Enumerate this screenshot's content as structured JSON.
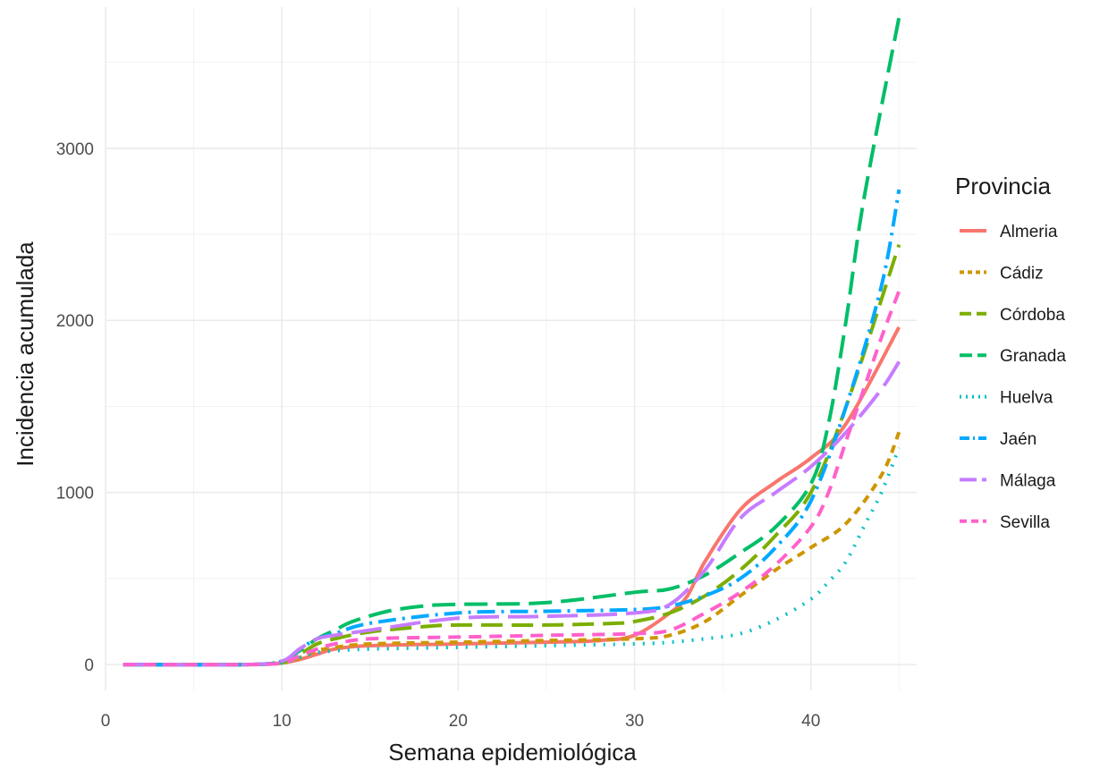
{
  "chart_data": {
    "type": "line",
    "title": "",
    "xlabel": "Semana epidemiológica",
    "ylabel": "Incidencia acumulada",
    "xlim": [
      0,
      46
    ],
    "ylim": [
      -150,
      3820
    ],
    "xticks": [
      0,
      10,
      20,
      30,
      40
    ],
    "yticks": [
      0,
      1000,
      2000,
      3000
    ],
    "xtick_labels": [
      "0",
      "10",
      "20",
      "30",
      "40"
    ],
    "ytick_labels": [
      "0",
      "1000",
      "2000",
      "3000"
    ],
    "grid": true,
    "legend": {
      "title": "Provincia",
      "position": "right"
    },
    "series": [
      {
        "name": "Almeria",
        "color": "#F8766D",
        "dash": "",
        "x": [
          1,
          8,
          10,
          11,
          12,
          13,
          15,
          20,
          25,
          28,
          30,
          32,
          33,
          34,
          36,
          38,
          40,
          42,
          45
        ],
        "y": [
          0,
          0,
          10,
          30,
          60,
          90,
          110,
          120,
          130,
          140,
          170,
          300,
          400,
          600,
          900,
          1060,
          1200,
          1400,
          1960
        ]
      },
      {
        "name": "Cádiz",
        "color": "#CD9600",
        "dash": "9,7",
        "x": [
          1,
          8,
          10,
          11,
          12,
          13,
          15,
          20,
          25,
          30,
          32,
          34,
          36,
          38,
          40,
          42,
          44,
          45
        ],
        "y": [
          0,
          0,
          10,
          40,
          80,
          100,
          120,
          130,
          140,
          150,
          170,
          250,
          400,
          550,
          680,
          820,
          1100,
          1350
        ]
      },
      {
        "name": "Córdoba",
        "color": "#7CAE00",
        "dash": "24,10",
        "x": [
          1,
          8,
          10,
          11,
          12,
          13,
          15,
          18,
          20,
          25,
          29,
          30,
          32,
          34,
          36,
          38,
          40,
          42,
          45
        ],
        "y": [
          0,
          0,
          10,
          60,
          120,
          150,
          190,
          220,
          230,
          230,
          240,
          250,
          300,
          400,
          550,
          750,
          1000,
          1500,
          2440
        ]
      },
      {
        "name": "Granada",
        "color": "#00BE67",
        "dash": "26,10",
        "x": [
          1,
          8,
          10,
          11,
          12,
          13,
          14,
          16,
          18,
          20,
          25,
          30,
          32,
          34,
          36,
          38,
          40,
          41,
          42,
          43,
          45
        ],
        "y": [
          0,
          0,
          20,
          80,
          150,
          200,
          250,
          310,
          340,
          350,
          360,
          420,
          440,
          520,
          650,
          800,
          1050,
          1400,
          2000,
          2700,
          3760
        ]
      },
      {
        "name": "Huelva",
        "color": "#00BFC4",
        "dash": "2,9",
        "x": [
          1,
          8,
          10,
          11,
          12,
          13,
          15,
          20,
          25,
          30,
          32,
          34,
          36,
          38,
          40,
          41,
          42,
          43,
          44,
          45
        ],
        "y": [
          0,
          0,
          10,
          40,
          70,
          80,
          90,
          100,
          110,
          120,
          130,
          150,
          180,
          260,
          380,
          480,
          600,
          800,
          1000,
          1260
        ]
      },
      {
        "name": "Jaén",
        "color": "#00A9FF",
        "dash": "20,7,3,7",
        "x": [
          1,
          8,
          10,
          11,
          12,
          13,
          15,
          20,
          25,
          30,
          32,
          34,
          36,
          38,
          40,
          42,
          44,
          45
        ],
        "y": [
          0,
          0,
          20,
          90,
          150,
          180,
          240,
          300,
          310,
          320,
          340,
          400,
          500,
          680,
          950,
          1500,
          2200,
          2760
        ]
      },
      {
        "name": "Málaga",
        "color": "#C77CFF",
        "dash": "34,10",
        "x": [
          1,
          8,
          10,
          11,
          12,
          13,
          15,
          20,
          25,
          30,
          32,
          34,
          36,
          38,
          40,
          42,
          44,
          45
        ],
        "y": [
          0,
          0,
          20,
          90,
          150,
          170,
          200,
          270,
          280,
          300,
          350,
          550,
          850,
          1000,
          1150,
          1350,
          1600,
          1760
        ]
      },
      {
        "name": "Sevilla",
        "color": "#FF61CC",
        "dash": "14,9",
        "x": [
          1,
          8,
          10,
          11,
          12,
          13,
          15,
          20,
          25,
          30,
          32,
          34,
          36,
          38,
          40,
          41,
          42,
          43,
          44,
          45
        ],
        "y": [
          0,
          0,
          10,
          50,
          90,
          120,
          150,
          160,
          170,
          180,
          200,
          300,
          420,
          580,
          800,
          1000,
          1300,
          1600,
          1900,
          2170
        ]
      }
    ]
  }
}
